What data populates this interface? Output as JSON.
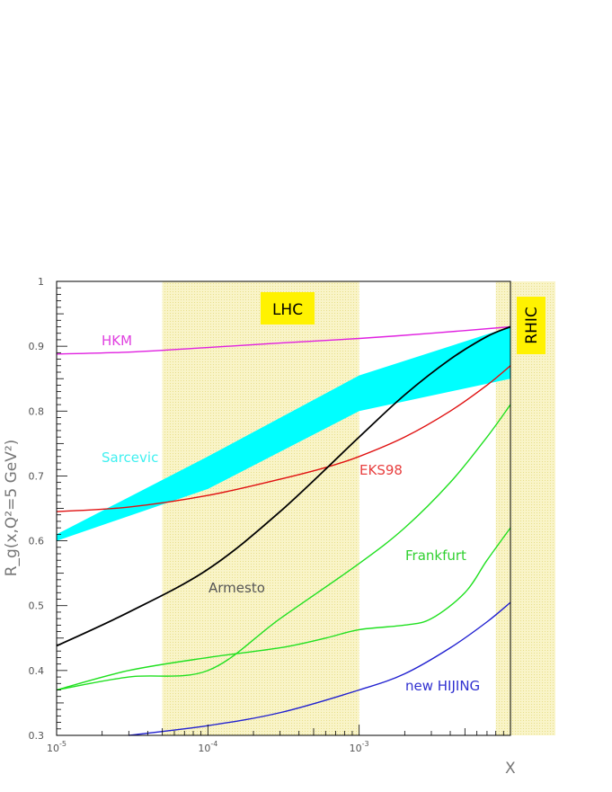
{
  "chart_data": {
    "type": "line",
    "xlabel": "X",
    "ylabel": "R_g(x,Q²=5 GeV²)",
    "xscale": "log",
    "xlim": [
      1e-05,
      0.01
    ],
    "ylim": [
      0.3,
      1.0
    ],
    "grid": false,
    "x_tick_labels": [
      "10^-5",
      "10^-4",
      "10^-3"
    ],
    "y_tick_labels": [
      "0.3",
      "0.4",
      "0.5",
      "0.6",
      "0.7",
      "0.8",
      "0.9",
      "1"
    ],
    "regions": [
      {
        "name": "LHC",
        "x_range": [
          5e-05,
          0.001
        ],
        "color": "#f7f2b8",
        "label_bg": "#fff200"
      },
      {
        "name": "RHIC",
        "x_range": [
          0.008,
          0.01
        ],
        "color": "#f7f2b8",
        "label_bg": "#fff200"
      }
    ],
    "series": [
      {
        "name": "HKM",
        "color": "#e020e0",
        "label_color": "#e040e0",
        "x": [
          1e-05,
          3e-05,
          0.0001,
          0.0003,
          0.001,
          0.003,
          0.01
        ],
        "y": [
          0.888,
          0.891,
          0.898,
          0.905,
          0.912,
          0.92,
          0.93
        ]
      },
      {
        "name": "EKS98",
        "color": "#e01010",
        "label_color": "#e84040",
        "x": [
          1e-05,
          3e-05,
          0.0001,
          0.0003,
          0.0006,
          0.001,
          0.002,
          0.004,
          0.007,
          0.01
        ],
        "y": [
          0.645,
          0.652,
          0.67,
          0.695,
          0.713,
          0.73,
          0.76,
          0.8,
          0.84,
          0.87
        ]
      },
      {
        "name": "Armesto",
        "color": "#000000",
        "label_color": "#555555",
        "x": [
          1e-05,
          3e-05,
          0.0001,
          0.0003,
          0.001,
          0.002,
          0.004,
          0.007,
          0.01
        ],
        "y": [
          0.438,
          0.49,
          0.556,
          0.645,
          0.76,
          0.825,
          0.88,
          0.915,
          0.93
        ]
      },
      {
        "name": "Frankfurt",
        "color": "#20e020",
        "label_color": "#30d030",
        "x": [
          1e-05,
          3e-05,
          0.0001,
          0.0003,
          0.001,
          0.002,
          0.004,
          0.007,
          0.01
        ],
        "y": [
          0.37,
          0.39,
          0.4,
          0.48,
          0.565,
          0.62,
          0.69,
          0.76,
          0.81
        ]
      },
      {
        "name": "Frankfurt",
        "color": "#20e020",
        "label_color": "#30d030",
        "x": [
          1e-05,
          3e-05,
          0.0001,
          0.0003,
          0.0006,
          0.001,
          0.002,
          0.003,
          0.005,
          0.007,
          0.01
        ],
        "y": [
          0.37,
          0.4,
          0.42,
          0.435,
          0.45,
          0.463,
          0.47,
          0.48,
          0.52,
          0.57,
          0.62
        ]
      },
      {
        "name": "new HIJING",
        "color": "#2020d0",
        "label_color": "#3030d0",
        "x": [
          3e-05,
          0.0001,
          0.0003,
          0.001,
          0.002,
          0.004,
          0.007,
          0.01
        ],
        "y": [
          0.3,
          0.315,
          0.335,
          0.37,
          0.395,
          0.435,
          0.475,
          0.505
        ]
      }
    ],
    "band": {
      "name": "Sarcevic",
      "color": "#00ffff",
      "label_color": "#40f0f0",
      "x": [
        1e-05,
        0.0001,
        0.001,
        0.01
      ],
      "upper": [
        0.61,
        0.73,
        0.855,
        0.93
      ],
      "lower": [
        0.6,
        0.68,
        0.8,
        0.85
      ]
    }
  }
}
